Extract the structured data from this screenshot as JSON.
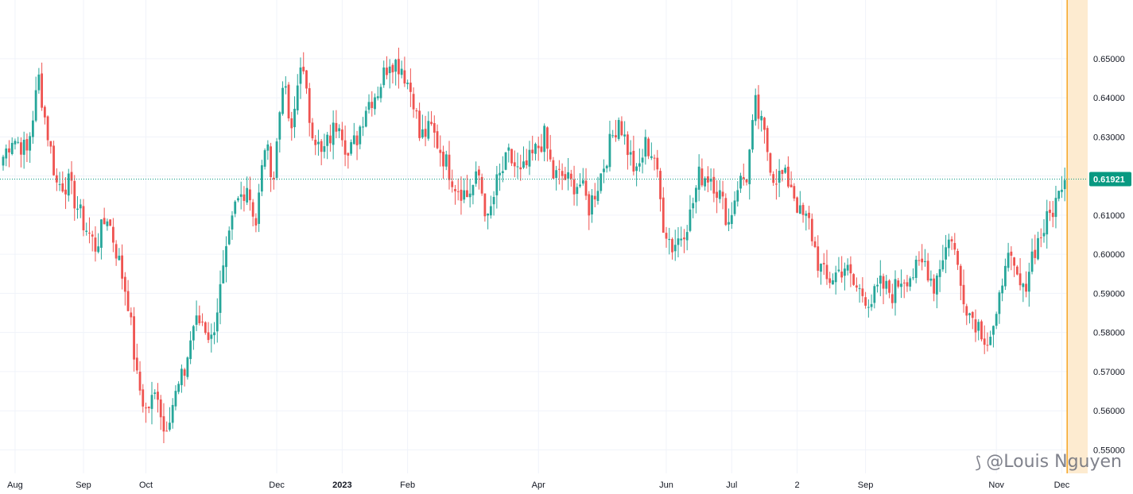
{
  "colors": {
    "up": "#26a69a",
    "down": "#ef5350",
    "grid": "#f0f3fa",
    "last_price": "#089981",
    "future_band": "#fdebd0",
    "future_line": "#f5a623"
  },
  "watermark": {
    "icon": "tradingview-logo-icon",
    "text": "@Louis Nguyen"
  },
  "chart_data": {
    "type": "candlestick",
    "title": "",
    "ylim": [
      0.544,
      0.665
    ],
    "y_ticks": [
      0.55,
      0.56,
      0.57,
      0.58,
      0.59,
      0.6,
      0.61,
      0.62,
      0.63,
      0.64,
      0.65
    ],
    "y_tick_labels": [
      "0.55000",
      "0.56000",
      "0.57000",
      "0.58000",
      "0.59000",
      "0.60000",
      "0.61000",
      "0.62000",
      "0.63000",
      "0.64000",
      "0.65000"
    ],
    "x_tick_labels": [
      {
        "label": "Aug",
        "bar": 4,
        "bold": false
      },
      {
        "label": "Sep",
        "bar": 27,
        "bold": false
      },
      {
        "label": "Oct",
        "bar": 48,
        "bold": false
      },
      {
        "label": "Dec",
        "bar": 92,
        "bold": false
      },
      {
        "label": "2023",
        "bar": 114,
        "bold": true
      },
      {
        "label": "Feb",
        "bar": 136,
        "bold": false
      },
      {
        "label": "Apr",
        "bar": 180,
        "bold": false
      },
      {
        "label": "Jun",
        "bar": 223,
        "bold": false
      },
      {
        "label": "Jul",
        "bar": 245,
        "bold": false
      },
      {
        "label": "2",
        "bar": 267,
        "bold": false
      },
      {
        "label": "Sep",
        "bar": 290,
        "bold": false
      },
      {
        "label": "Nov",
        "bar": 334,
        "bold": false
      },
      {
        "label": "Dec",
        "bar": 356,
        "bold": false
      }
    ],
    "last_price": 0.61921,
    "last_price_label": "0.61921",
    "anchors": [
      [
        0,
        0.625
      ],
      [
        3,
        0.63
      ],
      [
        6,
        0.628
      ],
      [
        8,
        0.626
      ],
      [
        12,
        0.645
      ],
      [
        14,
        0.635
      ],
      [
        18,
        0.618
      ],
      [
        22,
        0.618
      ],
      [
        27,
        0.608
      ],
      [
        31,
        0.602
      ],
      [
        35,
        0.61
      ],
      [
        39,
        0.598
      ],
      [
        42,
        0.588
      ],
      [
        45,
        0.568
      ],
      [
        48,
        0.56
      ],
      [
        52,
        0.565
      ],
      [
        54,
        0.555
      ],
      [
        57,
        0.562
      ],
      [
        61,
        0.57
      ],
      [
        64,
        0.582
      ],
      [
        67,
        0.583
      ],
      [
        70,
        0.578
      ],
      [
        74,
        0.595
      ],
      [
        78,
        0.612
      ],
      [
        82,
        0.618
      ],
      [
        85,
        0.608
      ],
      [
        88,
        0.628
      ],
      [
        91,
        0.62
      ],
      [
        94,
        0.645
      ],
      [
        97,
        0.63
      ],
      [
        100,
        0.65
      ],
      [
        103,
        0.635
      ],
      [
        107,
        0.625
      ],
      [
        110,
        0.63
      ],
      [
        113,
        0.635
      ],
      [
        116,
        0.625
      ],
      [
        119,
        0.63
      ],
      [
        122,
        0.638
      ],
      [
        126,
        0.642
      ],
      [
        130,
        0.65
      ],
      [
        134,
        0.648
      ],
      [
        138,
        0.64
      ],
      [
        140,
        0.63
      ],
      [
        144,
        0.632
      ],
      [
        148,
        0.625
      ],
      [
        152,
        0.618
      ],
      [
        156,
        0.615
      ],
      [
        160,
        0.62
      ],
      [
        163,
        0.608
      ],
      [
        166,
        0.618
      ],
      [
        170,
        0.625
      ],
      [
        174,
        0.62
      ],
      [
        178,
        0.625
      ],
      [
        182,
        0.63
      ],
      [
        185,
        0.62
      ],
      [
        188,
        0.62
      ],
      [
        191,
        0.618
      ],
      [
        194,
        0.618
      ],
      [
        197,
        0.612
      ],
      [
        200,
        0.618
      ],
      [
        204,
        0.628
      ],
      [
        207,
        0.635
      ],
      [
        210,
        0.627
      ],
      [
        213,
        0.62
      ],
      [
        216,
        0.628
      ],
      [
        219,
        0.625
      ],
      [
        222,
        0.608
      ],
      [
        225,
        0.602
      ],
      [
        228,
        0.605
      ],
      [
        231,
        0.61
      ],
      [
        234,
        0.62
      ],
      [
        238,
        0.62
      ],
      [
        241,
        0.615
      ],
      [
        244,
        0.608
      ],
      [
        247,
        0.618
      ],
      [
        250,
        0.62
      ],
      [
        253,
        0.638
      ],
      [
        256,
        0.63
      ],
      [
        259,
        0.62
      ],
      [
        262,
        0.62
      ],
      [
        265,
        0.618
      ],
      [
        268,
        0.61
      ],
      [
        271,
        0.608
      ],
      [
        274,
        0.598
      ],
      [
        277,
        0.593
      ],
      [
        280,
        0.595
      ],
      [
        283,
        0.597
      ],
      [
        286,
        0.592
      ],
      [
        289,
        0.59
      ],
      [
        292,
        0.588
      ],
      [
        295,
        0.592
      ],
      [
        299,
        0.59
      ],
      [
        302,
        0.594
      ],
      [
        306,
        0.595
      ],
      [
        310,
        0.598
      ],
      [
        313,
        0.592
      ],
      [
        316,
        0.6
      ],
      [
        319,
        0.605
      ],
      [
        322,
        0.592
      ],
      [
        325,
        0.585
      ],
      [
        328,
        0.582
      ],
      [
        331,
        0.578
      ],
      [
        334,
        0.582
      ],
      [
        337,
        0.6
      ],
      [
        340,
        0.595
      ],
      [
        343,
        0.59
      ],
      [
        346,
        0.6
      ],
      [
        349,
        0.605
      ],
      [
        352,
        0.61
      ],
      [
        355,
        0.615
      ],
      [
        357,
        0.619
      ]
    ]
  }
}
